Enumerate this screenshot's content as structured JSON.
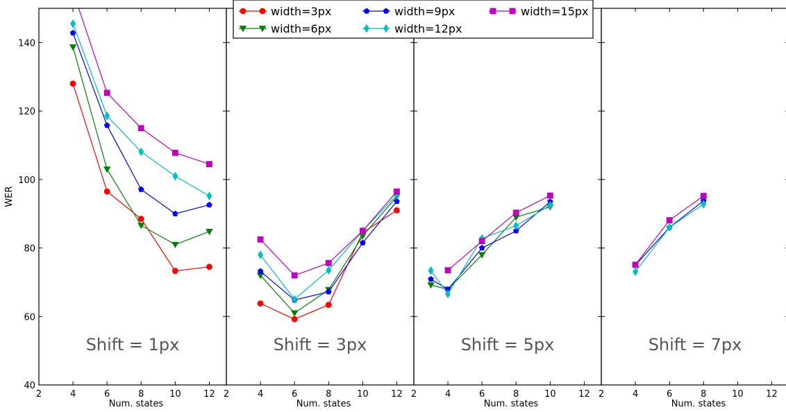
{
  "chart_data": {
    "type": "line",
    "ylabel": "WER",
    "ylim": [
      40,
      150
    ],
    "yticks": [
      40,
      60,
      80,
      100,
      120,
      140
    ],
    "xlim": [
      2,
      13
    ],
    "xticks": [
      2,
      4,
      6,
      8,
      10,
      12
    ],
    "legend_position": "top-center",
    "series_styles": [
      {
        "name": "width=3px",
        "color": "#ff0000",
        "marker": "circle"
      },
      {
        "name": "width=6px",
        "color": "#008000",
        "marker": "triangle-down"
      },
      {
        "name": "width=9px",
        "color": "#0000ff",
        "marker": "pentagon"
      },
      {
        "name": "width=12px",
        "color": "#00bfbf",
        "marker": "diamond"
      },
      {
        "name": "width=15px",
        "color": "#bf00bf",
        "marker": "square"
      }
    ],
    "panels": [
      {
        "title": "Shift = 1px",
        "xlabel": "Num. states",
        "series": [
          {
            "name": "width=3px",
            "x": [
              4,
              6,
              8,
              10,
              12
            ],
            "y": [
              128.0,
              96.5,
              88.5,
              73.3,
              74.5
            ]
          },
          {
            "name": "width=6px",
            "x": [
              4,
              6,
              8,
              10,
              12
            ],
            "y": [
              138.7,
              103.0,
              86.6,
              81.0,
              84.8
            ]
          },
          {
            "name": "width=9px",
            "x": [
              4,
              6,
              8,
              10,
              12
            ],
            "y": [
              142.8,
              115.8,
              97.1,
              90.0,
              92.6
            ]
          },
          {
            "name": "width=12px",
            "x": [
              4,
              6,
              8,
              10,
              12
            ],
            "y": [
              145.5,
              118.6,
              108.1,
              101.0,
              95.2
            ]
          },
          {
            "name": "width=15px",
            "x": [
              4,
              6,
              8,
              10,
              12
            ],
            "y": [
              155.0,
              125.3,
              115.0,
              107.8,
              104.5
            ]
          }
        ]
      },
      {
        "title": "Shift = 3px",
        "xlabel": "Num. states",
        "series": [
          {
            "name": "width=3px",
            "x": [
              4,
              6,
              8,
              10,
              12
            ],
            "y": [
              63.8,
              59.2,
              63.4,
              84.5,
              91.0
            ]
          },
          {
            "name": "width=6px",
            "x": [
              4,
              6,
              8,
              10,
              12
            ],
            "y": [
              72.0,
              61.0,
              67.8,
              83.5,
              95.0
            ]
          },
          {
            "name": "width=9px",
            "x": [
              4,
              6,
              8,
              10,
              12
            ],
            "y": [
              73.2,
              64.8,
              67.2,
              81.5,
              93.6
            ]
          },
          {
            "name": "width=12px",
            "x": [
              4,
              6,
              8,
              10,
              12
            ],
            "y": [
              78.0,
              65.0,
              73.5,
              85.0,
              95.5
            ]
          },
          {
            "name": "width=15px",
            "x": [
              4,
              6,
              8,
              10,
              12
            ],
            "y": [
              82.5,
              72.0,
              75.6,
              85.0,
              96.5
            ]
          }
        ]
      },
      {
        "title": "Shift = 5px",
        "xlabel": "Num. states",
        "series": [
          {
            "name": "width=6px",
            "x": [
              3,
              4,
              6,
              8,
              10
            ],
            "y": [
              69.2,
              67.9,
              78.0,
              89.0,
              92.0
            ]
          },
          {
            "name": "width=9px",
            "x": [
              3,
              4,
              6,
              8,
              10
            ],
            "y": [
              70.9,
              67.9,
              80.0,
              85.0,
              93.5
            ]
          },
          {
            "name": "width=12px",
            "x": [
              3,
              4,
              6,
              8,
              10
            ],
            "y": [
              73.4,
              66.6,
              82.8,
              86.5,
              92.5
            ]
          },
          {
            "name": "width=15px",
            "x": [
              4,
              6,
              8,
              10
            ],
            "y": [
              73.5,
              82.0,
              90.3,
              95.3
            ]
          }
        ]
      },
      {
        "title": "Shift = 7px",
        "xlabel": "Num. states",
        "series": [
          {
            "name": "width=9px",
            "x": [
              4,
              6,
              8
            ],
            "y": [
              75.0,
              86.0,
              93.8
            ]
          },
          {
            "name": "width=12px",
            "x": [
              4,
              6,
              8
            ],
            "y": [
              73.1,
              86.0,
              92.8
            ]
          },
          {
            "name": "width=15px",
            "x": [
              4,
              6,
              8
            ],
            "y": [
              75.1,
              88.1,
              95.2
            ]
          }
        ]
      }
    ]
  }
}
